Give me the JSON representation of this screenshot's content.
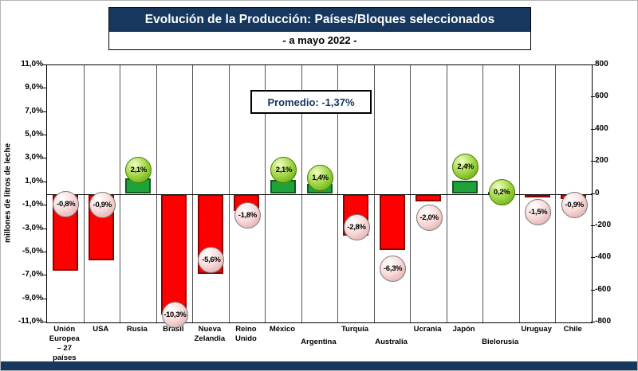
{
  "colors": {
    "title_bg": "#17375E",
    "bar_negative": "#FE0000",
    "bar_positive": "#1fa23a",
    "ball_negative": "#F2DCDB",
    "ball_positive": "#92D050",
    "annotation_text": "#17375E"
  },
  "chart_data": {
    "type": "bar",
    "title": "Evolución de la Producción: Países/Bloques seleccionados",
    "subtitle": "- a mayo 2022 -",
    "annotation": "Promedio: -1,37%",
    "ylabel": "millones de litros de leche",
    "legend_position": "none",
    "grid": "vertical-only",
    "left_axis_range": [
      -11,
      11
    ],
    "left_axis_tick_labels": [
      "11,0%",
      "9,0%",
      "7,0%",
      "5,0%",
      "3,0%",
      "1,0%",
      "-1,0%",
      "-3,0%",
      "-5,0%",
      "-7,0%",
      "-9,0%",
      "-11,0%"
    ],
    "right_axis_range": [
      -800,
      800
    ],
    "right_axis_tick_labels": [
      "800",
      "600",
      "400",
      "200",
      "0",
      "-200",
      "-400",
      "-600",
      "-800"
    ],
    "categories": [
      "Unión Europea – 27 países",
      "USA",
      "Rusia",
      "Brasil",
      "Nueva Zelandia",
      "Reino Unido",
      "México",
      "Argentina",
      "Turquía",
      "Australia",
      "Ucrania",
      "Japón",
      "Bielorusia",
      "Uruguay",
      "Chile"
    ],
    "series_note": "bars = change in millones de litros (right axis, estimated from pixels); balls = % change (left axis)",
    "points": [
      {
        "name": "Unión Europea – 27 países",
        "label_lines": [
          "Unión",
          "Europea",
          "– 27",
          "países"
        ],
        "row": "upper",
        "pct": -0.8,
        "pct_label": "-0,8%",
        "bar_value": -480
      },
      {
        "name": "USA",
        "label_lines": [
          "USA"
        ],
        "row": "upper",
        "pct": -0.9,
        "pct_label": "-0,9%",
        "bar_value": -415
      },
      {
        "name": "Rusia",
        "label_lines": [
          "Rusia"
        ],
        "row": "upper",
        "pct": 2.1,
        "pct_label": "2,1%",
        "bar_value": 95
      },
      {
        "name": "Brasil",
        "label_lines": [
          "Brasil"
        ],
        "row": "upper",
        "pct": -10.3,
        "pct_label": "-10,3%",
        "bar_value": -750
      },
      {
        "name": "Nueva Zelandia",
        "label_lines": [
          "Nueva",
          "Zelandia"
        ],
        "row": "upper",
        "pct": -5.6,
        "pct_label": "-5,6%",
        "bar_value": -500
      },
      {
        "name": "Reino Unido",
        "label_lines": [
          "Reino",
          "Unido"
        ],
        "row": "upper",
        "pct": -1.8,
        "pct_label": "-1,8%",
        "bar_value": -105
      },
      {
        "name": "México",
        "label_lines": [
          "México"
        ],
        "row": "upper",
        "pct": 2.1,
        "pct_label": "2,1%",
        "bar_value": 85
      },
      {
        "name": "Argentina",
        "label_lines": [
          "Argentina"
        ],
        "row": "lower",
        "pct": 1.4,
        "pct_label": "1,4%",
        "bar_value": 60
      },
      {
        "name": "Turquía",
        "label_lines": [
          "Turquía"
        ],
        "row": "upper",
        "pct": -2.8,
        "pct_label": "-2,8%",
        "bar_value": -260
      },
      {
        "name": "Australia",
        "label_lines": [
          "Australia"
        ],
        "row": "lower",
        "pct": -6.3,
        "pct_label": "-6,3%",
        "bar_value": -350
      },
      {
        "name": "Ucrania",
        "label_lines": [
          "Ucrania"
        ],
        "row": "upper",
        "pct": -2.0,
        "pct_label": "-2,0%",
        "bar_value": -45
      },
      {
        "name": "Japón",
        "label_lines": [
          "Japón"
        ],
        "row": "upper",
        "pct": 2.4,
        "pct_label": "2,4%",
        "bar_value": 80
      },
      {
        "name": "Bielorusia",
        "label_lines": [
          "Bielorusia"
        ],
        "row": "lower",
        "pct": 0.2,
        "pct_label": "0,2%",
        "bar_value": 10
      },
      {
        "name": "Uruguay",
        "label_lines": [
          "Uruguay"
        ],
        "row": "upper",
        "pct": -1.5,
        "pct_label": "-1,5%",
        "bar_value": -15
      },
      {
        "name": "Chile",
        "label_lines": [
          "Chile"
        ],
        "row": "upper",
        "pct": -0.9,
        "pct_label": "-0,9%",
        "bar_value": -30
      }
    ]
  }
}
